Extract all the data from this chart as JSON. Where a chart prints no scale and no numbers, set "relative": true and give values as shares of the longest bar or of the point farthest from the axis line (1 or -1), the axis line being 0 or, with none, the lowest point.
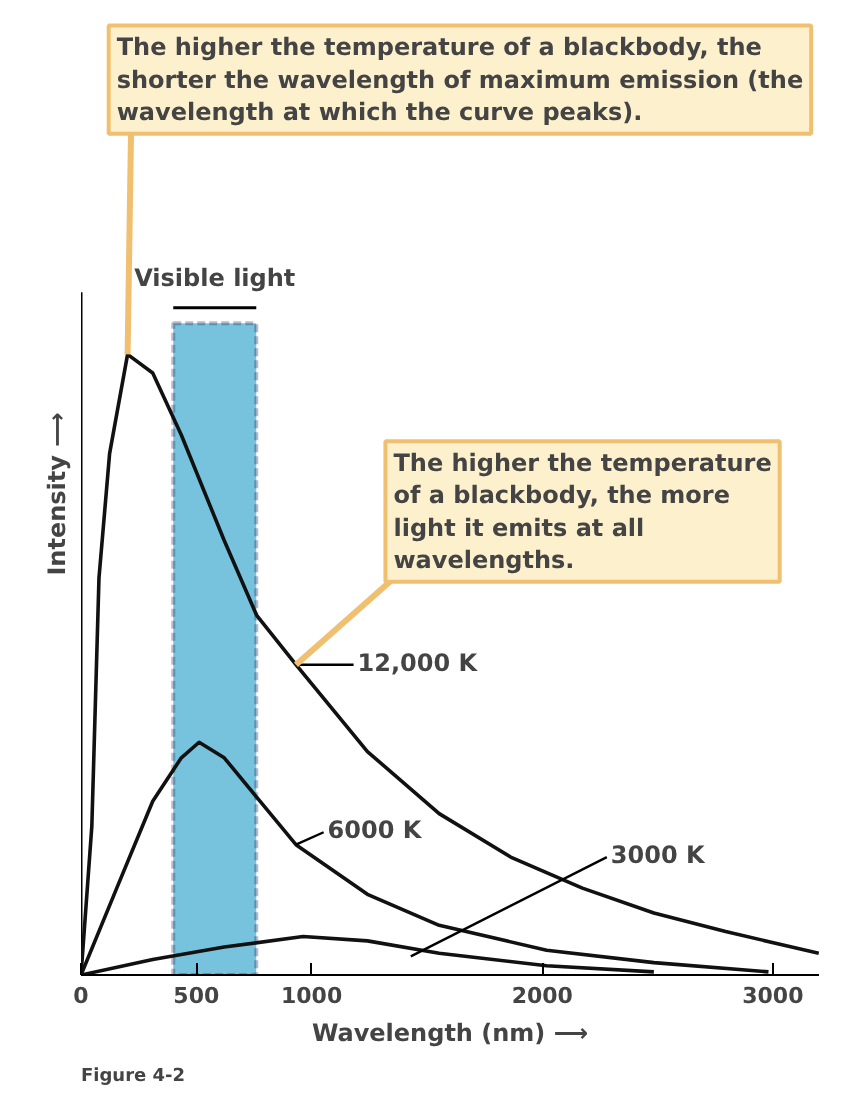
{
  "chart_data": {
    "type": "line",
    "relative": true,
    "xlabel": "Wavelength (nm) ⟶",
    "ylabel": "Intensity ⟶",
    "xlim": [
      0,
      3200
    ],
    "xticks": [
      0,
      500,
      1000,
      2000,
      3000
    ],
    "grid": false,
    "marker": "none",
    "line_style": "solid",
    "series": [
      {
        "name": "12,000 K",
        "color": "#111111",
        "x": [
          0,
          47,
          78,
          124,
          202,
          311,
          435,
          621,
          761,
          932,
          1242,
          1553,
          1863,
          2174,
          2484,
          2795,
          3199
        ],
        "values": [
          0,
          0.24,
          0.64,
          0.84,
          1.0,
          0.97,
          0.87,
          0.7,
          0.58,
          0.5,
          0.36,
          0.26,
          0.19,
          0.14,
          0.1,
          0.07,
          0.035
        ]
      },
      {
        "name": "6000 K",
        "color": "#111111",
        "x": [
          0,
          155,
          311,
          435,
          512,
          621,
          776,
          932,
          1242,
          1553,
          2019,
          2484,
          2981
        ],
        "values": [
          0,
          0.14,
          0.28,
          0.35,
          0.375,
          0.35,
          0.28,
          0.21,
          0.13,
          0.08,
          0.04,
          0.02,
          0.005
        ]
      },
      {
        "name": "3000 K",
        "color": "#111111",
        "x": [
          0,
          311,
          621,
          963,
          1242,
          1553,
          2019,
          2484
        ],
        "values": [
          0,
          0.025,
          0.045,
          0.062,
          0.055,
          0.035,
          0.015,
          0.005
        ]
      }
    ],
    "bands": [
      {
        "axis": "x",
        "from": 400,
        "to": 760,
        "label": "Visible light",
        "color": "#5fb8d8"
      }
    ],
    "annotations": [
      {
        "text": "The higher the temperature of a blackbody, the shorter the wavelength of maximum emission (the wavelength at which the curve peaks).",
        "x": 202,
        "y": 1.0
      },
      {
        "text": "The higher the temperature of a blackbody, the more light it emits at all wavelengths.",
        "x": 932,
        "y": 0.5
      },
      "Figure 4-2"
    ]
  }
}
